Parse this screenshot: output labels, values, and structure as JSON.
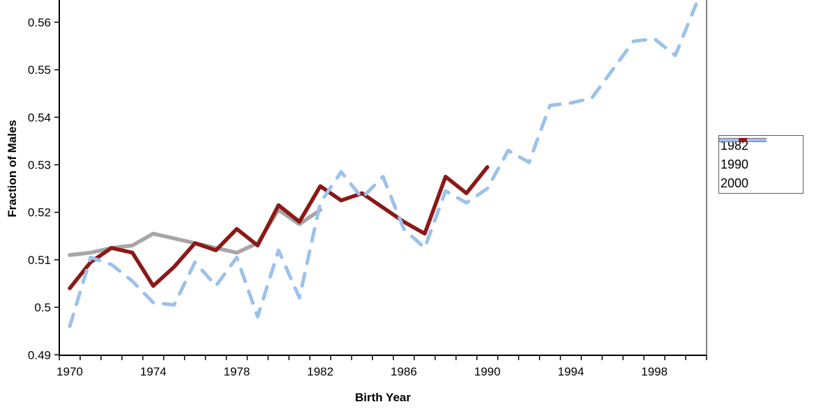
{
  "chart_data": {
    "type": "line",
    "title": "",
    "xlabel": "Birth Year",
    "ylabel": "Fraction of Males",
    "x_start": 1970,
    "x_step": 1,
    "x_axis_range": [
      1970,
      2000
    ],
    "x_tick_labels": [
      "1970",
      "1974",
      "1978",
      "1982",
      "1986",
      "1990",
      "1994",
      "1998"
    ],
    "x_tick_years": [
      1970,
      1974,
      1978,
      1982,
      1986,
      1990,
      1994,
      1998
    ],
    "y_tick_labels": [
      "0.49",
      "0.5",
      "0.51",
      "0.52",
      "0.53",
      "0.54",
      "0.55",
      "0.56"
    ],
    "y_ticks": [
      0.49,
      0.5,
      0.51,
      0.52,
      0.53,
      0.54,
      0.55,
      0.56
    ],
    "ylim_visible": [
      0.49,
      0.5647
    ],
    "grid": false,
    "legend_position": "right",
    "series": [
      {
        "name": "1982",
        "color": "#A6A6A6",
        "style": "solid",
        "start_year": 1970,
        "values": [
          0.511,
          0.5115,
          0.5125,
          0.513,
          0.5155,
          0.5145,
          0.5135,
          0.5125,
          0.5115,
          0.5135,
          0.5205,
          0.5175,
          0.5205
        ]
      },
      {
        "name": "1990",
        "color": "#8B1818",
        "style": "solid",
        "start_year": 1970,
        "values": [
          0.504,
          0.5095,
          0.5125,
          0.5115,
          0.5045,
          0.5085,
          0.5135,
          0.512,
          0.5165,
          0.513,
          0.5215,
          0.518,
          0.5255,
          0.5225,
          0.524,
          0.521,
          0.518,
          0.5155,
          0.5275,
          0.524,
          0.5295
        ]
      },
      {
        "name": "2000",
        "color": "#9BC2EA",
        "style": "dashed",
        "start_year": 1970,
        "values": [
          0.496,
          0.5105,
          0.509,
          0.5055,
          0.501,
          0.5005,
          0.5095,
          0.5045,
          0.5105,
          0.498,
          0.512,
          0.502,
          0.522,
          0.5285,
          0.523,
          0.5275,
          0.5165,
          0.5125,
          0.5245,
          0.522,
          0.525,
          0.533,
          0.5305,
          0.5425,
          0.543,
          0.544,
          0.55,
          0.556,
          0.5565,
          0.553,
          0.5638
        ]
      }
    ]
  },
  "colors": {
    "axis": "#000000",
    "plot_border_right": "#808080",
    "background": "#FFFFFF"
  }
}
